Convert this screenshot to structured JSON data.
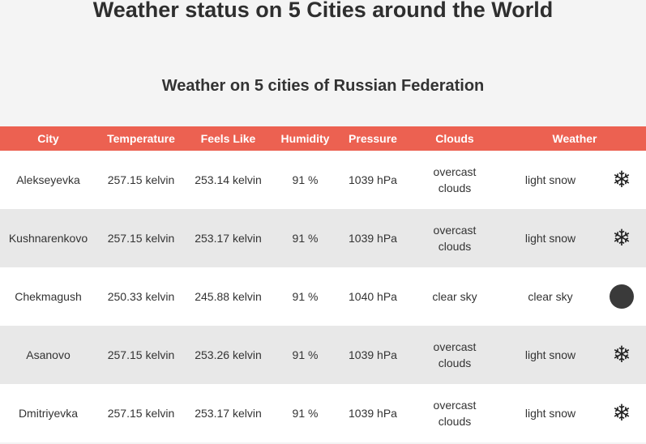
{
  "page": {
    "title": "Weather status on 5 Cities around the World",
    "subtitle": "Weather on 5 cities of Russian Federation"
  },
  "table": {
    "headers": [
      "City",
      "Temperature",
      "Feels Like",
      "Humidity",
      "Pressure",
      "Clouds",
      "Weather"
    ],
    "rows": [
      {
        "city": "Alekseyevka",
        "temperature": "257.15 kelvin",
        "feels_like": "253.14 kelvin",
        "humidity": "91 %",
        "pressure": "1039 hPa",
        "clouds": "overcast clouds",
        "weather": "light snow",
        "icon": "snowflake-icon"
      },
      {
        "city": "Kushnarenkovo",
        "temperature": "257.15 kelvin",
        "feels_like": "253.17 kelvin",
        "humidity": "91 %",
        "pressure": "1039 hPa",
        "clouds": "overcast clouds",
        "weather": "light snow",
        "icon": "snowflake-icon"
      },
      {
        "city": "Chekmagush",
        "temperature": "250.33 kelvin",
        "feels_like": "245.88 kelvin",
        "humidity": "91 %",
        "pressure": "1040 hPa",
        "clouds": "clear sky",
        "weather": "clear sky",
        "icon": "moon-icon"
      },
      {
        "city": "Asanovo",
        "temperature": "257.15 kelvin",
        "feels_like": "253.26 kelvin",
        "humidity": "91 %",
        "pressure": "1039 hPa",
        "clouds": "overcast clouds",
        "weather": "light snow",
        "icon": "snowflake-icon"
      },
      {
        "city": "Dmitriyevka",
        "temperature": "257.15 kelvin",
        "feels_like": "253.17 kelvin",
        "humidity": "91 %",
        "pressure": "1039 hPa",
        "clouds": "overcast clouds",
        "weather": "light snow",
        "icon": "snowflake-icon"
      }
    ]
  },
  "colors": {
    "header_bg": "#ec6151",
    "row_alt_bg": "#e8e8e8",
    "page_bg": "#f4f4f4"
  }
}
